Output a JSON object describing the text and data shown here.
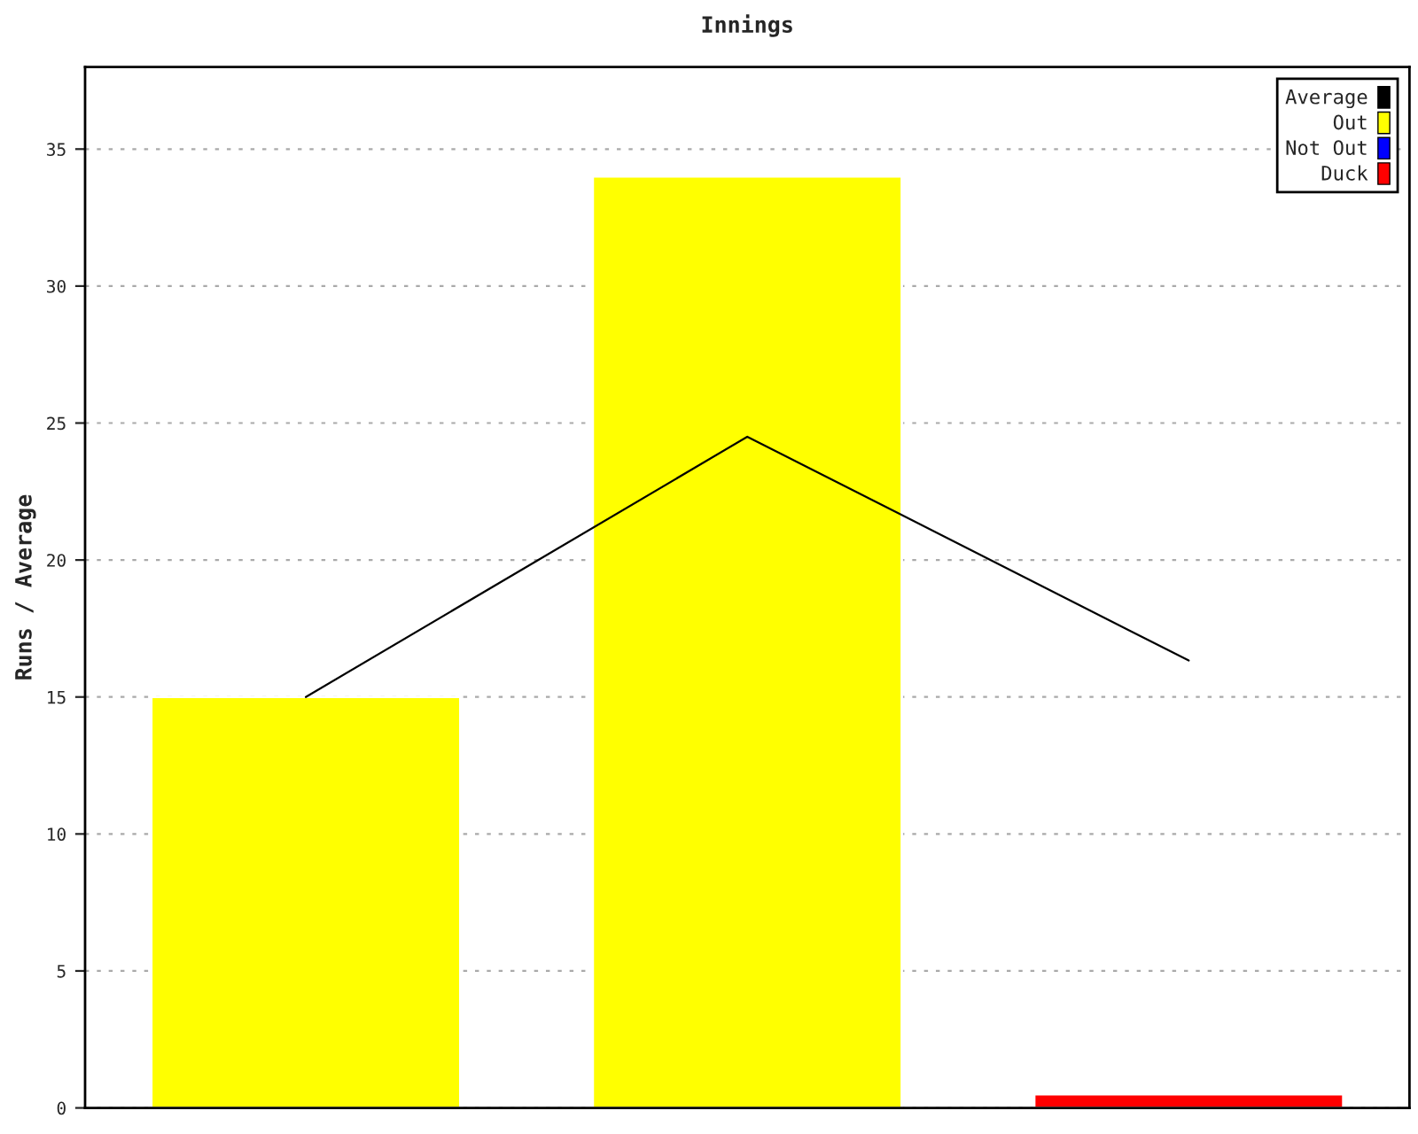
{
  "chart_data": {
    "type": "bar",
    "title": "Innings",
    "ylabel": "Runs / Average",
    "categories": [
      null,
      null,
      null
    ],
    "series": [
      {
        "name": "Average",
        "type": "line",
        "color": "#000000",
        "values": [
          15,
          24.5,
          16.33
        ]
      },
      {
        "name": "Out",
        "color": "#ffff00",
        "values": [
          15,
          34,
          null
        ]
      },
      {
        "name": "Not Out",
        "color": "#0000ff",
        "values": [
          null,
          null,
          null
        ]
      },
      {
        "name": "Duck",
        "color": "#ff0000",
        "values": [
          null,
          null,
          0.5
        ]
      }
    ],
    "ylim": [
      0,
      38
    ],
    "yticks": [
      0,
      5,
      10,
      15,
      20,
      25,
      30,
      35
    ],
    "grid": "y",
    "legend": "top right",
    "marker": "none",
    "line_style": "solid"
  }
}
